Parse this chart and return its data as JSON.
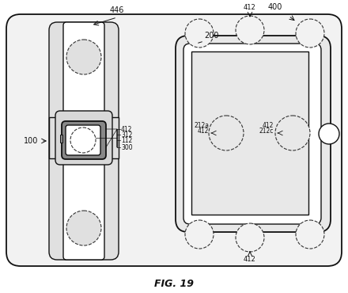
{
  "bg_color": "#ffffff",
  "fig_label": "FIG. 19",
  "outer_bg": "#f0f0f0",
  "white": "#ffffff",
  "light_gray": "#e8e8e8",
  "dark": "#111111",
  "dashed": "#333333"
}
